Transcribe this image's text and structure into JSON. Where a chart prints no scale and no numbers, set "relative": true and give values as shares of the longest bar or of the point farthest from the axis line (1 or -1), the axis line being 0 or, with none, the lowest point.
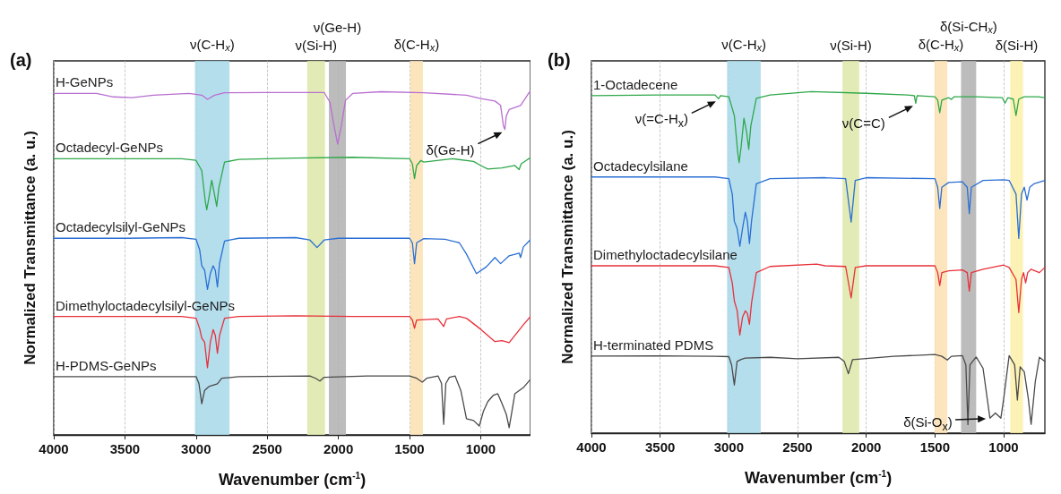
{
  "chart_data": [
    {
      "type": "line",
      "title": "(a)",
      "xlabel": "Wavenumber (cm$^{-1}$)",
      "ylabel": "Normalized Transmittance (a. u.)",
      "relative": true,
      "xlim": [
        4000,
        650
      ],
      "xticks": [
        4000,
        3500,
        3000,
        2500,
        2000,
        1500,
        1000
      ],
      "grid": "x",
      "legend": false,
      "marker": "none",
      "line_style": "solid",
      "series": [
        {
          "name": "H-GeNPs",
          "color": "#b96fd0",
          "x": [
            4000,
            3700,
            3580,
            3450,
            3300,
            3050,
            2960,
            2920,
            2870,
            2800,
            2500,
            2100,
            2060,
            2030,
            2005,
            1980,
            1950,
            1900,
            1700,
            1400,
            1100,
            1000,
            900,
            860,
            840,
            830,
            820,
            800,
            720,
            680,
            660,
            650
          ],
          "values": [
            0.995,
            0.995,
            0.985,
            0.983,
            0.99,
            0.995,
            0.99,
            0.978,
            0.99,
            0.997,
            0.998,
            0.998,
            0.97,
            0.9,
            0.847,
            0.9,
            0.975,
            0.995,
            1.0,
            0.997,
            0.99,
            0.98,
            0.973,
            0.96,
            0.9,
            0.89,
            0.93,
            0.948,
            0.96,
            0.985,
            0.998,
            1.0
          ]
        },
        {
          "name": "Octadecyl-GeNPs",
          "color": "#2ea84a",
          "x": [
            4000,
            3500,
            3100,
            3000,
            2960,
            2935,
            2925,
            2910,
            2890,
            2870,
            2855,
            2840,
            2800,
            2700,
            2300,
            1900,
            1500,
            1480,
            1465,
            1450,
            1420,
            1400,
            1200,
            1050,
            1000,
            950,
            850,
            760,
            730,
            715,
            680,
            650
          ],
          "values": [
            0.805,
            0.805,
            0.805,
            0.8,
            0.77,
            0.68,
            0.656,
            0.69,
            0.742,
            0.7,
            0.666,
            0.72,
            0.795,
            0.803,
            0.807,
            0.809,
            0.805,
            0.79,
            0.747,
            0.785,
            0.8,
            0.795,
            0.805,
            0.797,
            0.785,
            0.775,
            0.778,
            0.785,
            0.773,
            0.79,
            0.8,
            0.808
          ]
        },
        {
          "name": "Octadecylsilyl-GeNPs",
          "color": "#2a6fd4",
          "x": [
            4000,
            3500,
            3100,
            3000,
            2975,
            2960,
            2940,
            2920,
            2900,
            2880,
            2865,
            2850,
            2835,
            2800,
            2700,
            2300,
            2200,
            2150,
            2100,
            2000,
            1500,
            1480,
            1465,
            1450,
            1400,
            1250,
            1150,
            1100,
            1030,
            960,
            900,
            860,
            800,
            730,
            720,
            700,
            650
          ],
          "values": [
            0.573,
            0.573,
            0.575,
            0.57,
            0.54,
            0.493,
            0.48,
            0.424,
            0.47,
            0.493,
            0.48,
            0.431,
            0.5,
            0.565,
            0.573,
            0.575,
            0.568,
            0.546,
            0.568,
            0.573,
            0.573,
            0.56,
            0.499,
            0.56,
            0.572,
            0.57,
            0.56,
            0.527,
            0.47,
            0.49,
            0.517,
            0.499,
            0.522,
            0.53,
            0.517,
            0.548,
            0.569
          ]
        },
        {
          "name": "Dimethyloctadecylsilyl-GeNPs",
          "color": "#e8303a",
          "x": [
            4000,
            3500,
            3100,
            3000,
            2975,
            2960,
            2940,
            2920,
            2900,
            2880,
            2865,
            2850,
            2835,
            2800,
            2700,
            2300,
            1900,
            1500,
            1480,
            1465,
            1450,
            1300,
            1260,
            1240,
            1150,
            1100,
            1000,
            900,
            850,
            800,
            760,
            700,
            650
          ],
          "values": [
            0.345,
            0.345,
            0.345,
            0.34,
            0.31,
            0.282,
            0.27,
            0.196,
            0.27,
            0.307,
            0.29,
            0.238,
            0.29,
            0.34,
            0.345,
            0.347,
            0.345,
            0.345,
            0.335,
            0.311,
            0.335,
            0.338,
            0.316,
            0.338,
            0.345,
            0.34,
            0.308,
            0.272,
            0.275,
            0.269,
            0.29,
            0.321,
            0.345
          ]
        },
        {
          "name": "H-PDMS-GeNPs",
          "color": "#4a4a4a",
          "x": [
            4000,
            3500,
            3100,
            3000,
            2980,
            2960,
            2940,
            2910,
            2880,
            2850,
            2820,
            2700,
            2200,
            2160,
            2130,
            2100,
            1800,
            1500,
            1450,
            1410,
            1380,
            1300,
            1275,
            1260,
            1245,
            1220,
            1180,
            1140,
            1100,
            1050,
            1010,
            980,
            950,
            910,
            880,
            850,
            820,
            800,
            780,
            760,
            700,
            650
          ],
          "values": [
            0.17,
            0.17,
            0.17,
            0.17,
            0.15,
            0.091,
            0.13,
            0.141,
            0.145,
            0.149,
            0.165,
            0.17,
            0.172,
            0.165,
            0.157,
            0.168,
            0.172,
            0.172,
            0.165,
            0.154,
            0.165,
            0.172,
            0.15,
            0.031,
            0.15,
            0.168,
            0.172,
            0.13,
            0.047,
            0.042,
            0.026,
            0.07,
            0.097,
            0.116,
            0.12,
            0.091,
            0.06,
            0.021,
            0.07,
            0.12,
            0.138,
            0.162
          ]
        }
      ],
      "bands": [
        {
          "axis": "x",
          "from": 3008,
          "to": 2765,
          "label": "ν(C-H$_{x}$)",
          "color": "#a8d8ea"
        },
        {
          "axis": "x",
          "from": 2219,
          "to": 2094,
          "label": "ν(Si-H)",
          "color": "#dde8a8"
        },
        {
          "axis": "x",
          "from": 2067,
          "to": 1947,
          "label": "ν(Ge-H)",
          "color": "#b0b0b0"
        },
        {
          "axis": "x",
          "from": 1495,
          "to": 1406,
          "label": "δ(C-H$_{x}$)",
          "color": "#fbe0b0"
        }
      ],
      "annotations": [
        {
          "text": "δ(Ge-H)",
          "x": 830,
          "y": 0.89
        }
      ]
    },
    {
      "type": "line",
      "title": "(b)",
      "xlabel": "Wavenumber (cm$^{-1}$)",
      "ylabel": "Normalized Transmittance (a. u.)",
      "relative": true,
      "xlim": [
        4000,
        700
      ],
      "xticks": [
        4000,
        3500,
        3000,
        2500,
        2000,
        1500,
        1000
      ],
      "grid": "x",
      "legend": false,
      "marker": "none",
      "line_style": "solid",
      "series": [
        {
          "name": "1-Octadecene",
          "color": "#2ea84a",
          "x": [
            4000,
            3500,
            3100,
            3075,
            3060,
            3000,
            2960,
            2935,
            2925,
            2910,
            2890,
            2870,
            2855,
            2840,
            2800,
            2700,
            2400,
            2000,
            1700,
            1650,
            1640,
            1630,
            1500,
            1480,
            1465,
            1450,
            1400,
            1380,
            1360,
            1200,
            1010,
            990,
            970,
            930,
            910,
            890,
            850,
            750,
            700
          ],
          "values": [
            0.988,
            0.99,
            0.99,
            0.979,
            0.988,
            0.985,
            0.93,
            0.82,
            0.792,
            0.84,
            0.922,
            0.88,
            0.831,
            0.9,
            0.98,
            0.99,
            1.0,
            0.995,
            0.99,
            0.988,
            0.966,
            0.988,
            0.985,
            0.975,
            0.938,
            0.975,
            0.982,
            0.977,
            0.985,
            0.985,
            0.982,
            0.966,
            0.982,
            0.978,
            0.93,
            0.978,
            0.985,
            0.985,
            0.982
          ]
        },
        {
          "name": "Octadecylsilane",
          "color": "#2a6fd4",
          "x": [
            4000,
            3500,
            3100,
            3000,
            2975,
            2960,
            2940,
            2920,
            2900,
            2880,
            2865,
            2850,
            2835,
            2800,
            2700,
            2300,
            2150,
            2110,
            2080,
            2000,
            1500,
            1480,
            1465,
            1450,
            1400,
            1300,
            1265,
            1250,
            1235,
            1150,
            1000,
            960,
            910,
            890,
            870,
            850,
            830,
            810,
            780,
            700
          ],
          "values": [
            0.75,
            0.75,
            0.75,
            0.745,
            0.7,
            0.62,
            0.6,
            0.547,
            0.6,
            0.647,
            0.62,
            0.555,
            0.62,
            0.73,
            0.745,
            0.748,
            0.745,
            0.618,
            0.74,
            0.748,
            0.745,
            0.72,
            0.658,
            0.72,
            0.734,
            0.736,
            0.72,
            0.643,
            0.72,
            0.74,
            0.742,
            0.74,
            0.7,
            0.57,
            0.7,
            0.72,
            0.682,
            0.72,
            0.73,
            0.74
          ]
        },
        {
          "name": "Dimethyloctadecylsilane",
          "color": "#e8303a",
          "x": [
            4000,
            3500,
            3100,
            3000,
            2975,
            2960,
            2940,
            2920,
            2900,
            2880,
            2865,
            2850,
            2835,
            2800,
            2700,
            2360,
            2300,
            2150,
            2110,
            2080,
            2000,
            1500,
            1480,
            1465,
            1450,
            1400,
            1300,
            1265,
            1250,
            1235,
            1150,
            1000,
            960,
            910,
            890,
            870,
            855,
            840,
            825,
            800,
            740,
            700
          ],
          "values": [
            0.49,
            0.49,
            0.49,
            0.485,
            0.44,
            0.387,
            0.36,
            0.287,
            0.34,
            0.358,
            0.35,
            0.319,
            0.38,
            0.47,
            0.488,
            0.495,
            0.49,
            0.488,
            0.396,
            0.485,
            0.49,
            0.49,
            0.47,
            0.432,
            0.47,
            0.475,
            0.478,
            0.47,
            0.416,
            0.47,
            0.48,
            0.492,
            0.485,
            0.45,
            0.353,
            0.45,
            0.47,
            0.44,
            0.47,
            0.48,
            0.47,
            0.485
          ]
        },
        {
          "name": "H-terminated PDMS",
          "color": "#4a4a4a",
          "x": [
            4000,
            3500,
            3100,
            3000,
            2980,
            2960,
            2940,
            2910,
            2880,
            2700,
            2500,
            2200,
            2160,
            2130,
            2100,
            1800,
            1500,
            1450,
            1410,
            1380,
            1300,
            1275,
            1260,
            1245,
            1200,
            1150,
            1100,
            1060,
            1020,
            1000,
            960,
            920,
            900,
            880,
            850,
            820,
            800,
            770,
            740,
            700
          ],
          "values": [
            0.2255,
            0.226,
            0.225,
            0.224,
            0.2,
            0.141,
            0.21,
            0.216,
            0.22,
            0.222,
            0.218,
            0.222,
            0.21,
            0.174,
            0.215,
            0.225,
            0.23,
            0.225,
            0.214,
            0.225,
            0.227,
            0.2,
            0.025,
            0.2,
            0.223,
            0.19,
            0.044,
            0.059,
            0.044,
            0.1,
            0.227,
            0.2,
            0.097,
            0.194,
            0.18,
            0.1,
            0.026,
            0.15,
            0.222,
            0.21
          ]
        }
      ],
      "bands": [
        {
          "axis": "x",
          "from": 3013,
          "to": 2768,
          "label": "ν(C-H$_{x}$)",
          "color": "#a8d8ea"
        },
        {
          "axis": "x",
          "from": 2173,
          "to": 2051,
          "label": "ν(Si-H)",
          "color": "#dde8a8"
        },
        {
          "axis": "x",
          "from": 1503,
          "to": 1410,
          "label": "δ(C-H$_{x}$)",
          "color": "#fbe0b0"
        },
        {
          "axis": "x",
          "from": 1310,
          "to": 1200,
          "label": "δ(Si-CH$_{x}$)",
          "color": "#b0b0b0"
        },
        {
          "axis": "x",
          "from": 952,
          "to": 859,
          "label": "δ(Si-H)",
          "color": "#fbf0a8"
        }
      ],
      "annotations": [
        {
          "text": "ν(=C-H$_{x}$)",
          "x": 3075,
          "y": 0.979
        },
        {
          "text": "ν(C=C)",
          "x": 1640,
          "y": 0.966
        },
        {
          "text": "δ(Si-O$_{x}$)",
          "x": 1110,
          "y": 0.05
        }
      ]
    }
  ]
}
